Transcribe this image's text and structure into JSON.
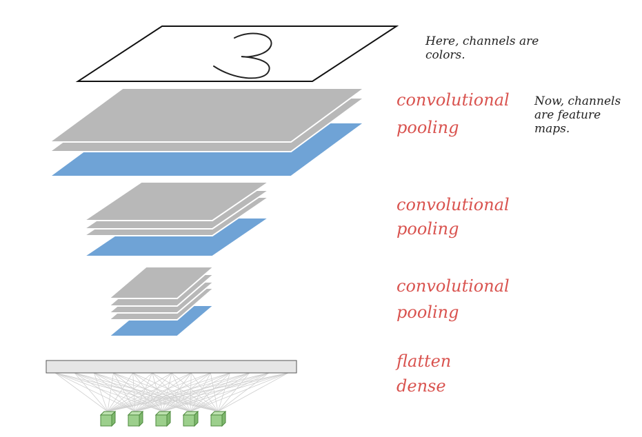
{
  "notes": {
    "input_note": "Here, channels are\ncolors.",
    "feature_note": "Now, channels\nare feature\nmaps."
  },
  "stages": [
    {
      "labels": [
        "convolutional",
        "pooling"
      ]
    },
    {
      "labels": [
        "convolutional",
        "pooling"
      ]
    },
    {
      "labels": [
        "convolutional",
        "pooling"
      ]
    },
    {
      "labels": [
        "flatten",
        "dense"
      ]
    }
  ],
  "input_digit": "3",
  "output_units": 5,
  "colors": {
    "conv_layer": "#b8b8b8",
    "pool_layer": "#6fa3d6",
    "label_red": "#d9534f",
    "neuron_green": "#9ccf8c",
    "flatten_bar": "#e6e6e6"
  },
  "icons": {
    "neuron": "cube-icon",
    "input_digit": "handwritten-digit-icon"
  }
}
